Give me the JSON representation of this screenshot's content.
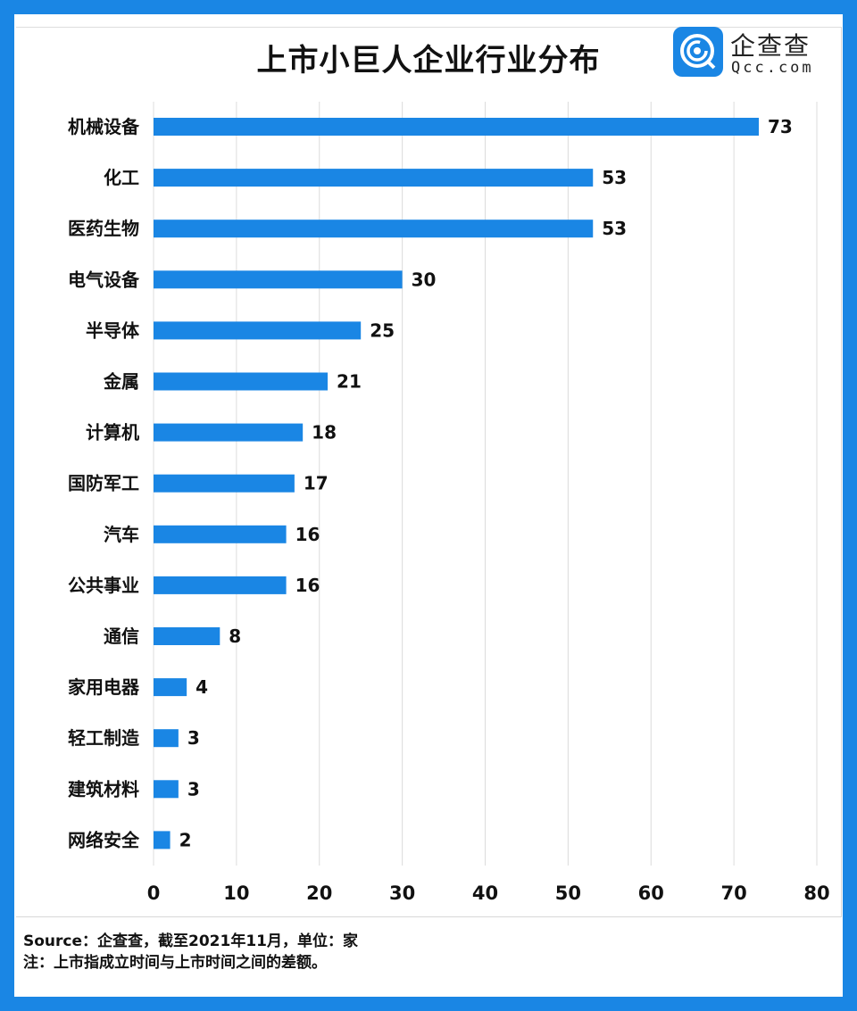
{
  "brand": {
    "name_cn": "企查查",
    "name_en": "Qcc.com",
    "color": "#1a86e4"
  },
  "chart_data": {
    "type": "bar",
    "orientation": "horizontal",
    "title": "上市小巨人企业行业分布",
    "categories": [
      "机械设备",
      "化工",
      "医药生物",
      "电气设备",
      "半导体",
      "金属",
      "计算机",
      "国防军工",
      "汽车",
      "公共事业",
      "通信",
      "家用电器",
      "轻工制造",
      "建筑材料",
      "网络安全"
    ],
    "values": [
      73,
      53,
      53,
      30,
      25,
      21,
      18,
      17,
      16,
      16,
      8,
      4,
      3,
      3,
      2
    ],
    "xlim": [
      0,
      80
    ],
    "xticks": [
      0,
      10,
      20,
      30,
      40,
      50,
      60,
      70,
      80
    ],
    "grid": true,
    "bar_color": "#1a86e4",
    "data_labels": true
  },
  "footer": {
    "source": "Source：企查查，截至2021年11月，单位：家",
    "note": "注：上市指成立时间与上市时间之间的差额。"
  }
}
